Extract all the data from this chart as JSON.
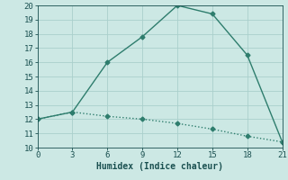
{
  "xlabel": "Humidex (Indice chaleur)",
  "ylabel": "",
  "xlim": [
    0,
    21
  ],
  "ylim": [
    10,
    20
  ],
  "xticks": [
    0,
    3,
    6,
    9,
    12,
    15,
    18,
    21
  ],
  "yticks": [
    10,
    11,
    12,
    13,
    14,
    15,
    16,
    17,
    18,
    19,
    20
  ],
  "line1_x": [
    0,
    3,
    6,
    9,
    12,
    15,
    18,
    21
  ],
  "line1_y": [
    12,
    12.5,
    16,
    17.8,
    20,
    19.4,
    16.5,
    10.4
  ],
  "line2_x": [
    0,
    3,
    6,
    9,
    12,
    15,
    18,
    21
  ],
  "line2_y": [
    12,
    12.5,
    12.2,
    12.0,
    11.7,
    11.3,
    10.8,
    10.4
  ],
  "line_color": "#2e7d6d",
  "bg_color": "#cce8e4",
  "grid_color": "#aacfcc",
  "tick_label_color": "#1a5050",
  "xlabel_color": "#1a5050",
  "marker": "D",
  "marker_size": 2.5,
  "line_width": 1.0,
  "tick_fontsize": 6.5,
  "xlabel_fontsize": 7.0
}
